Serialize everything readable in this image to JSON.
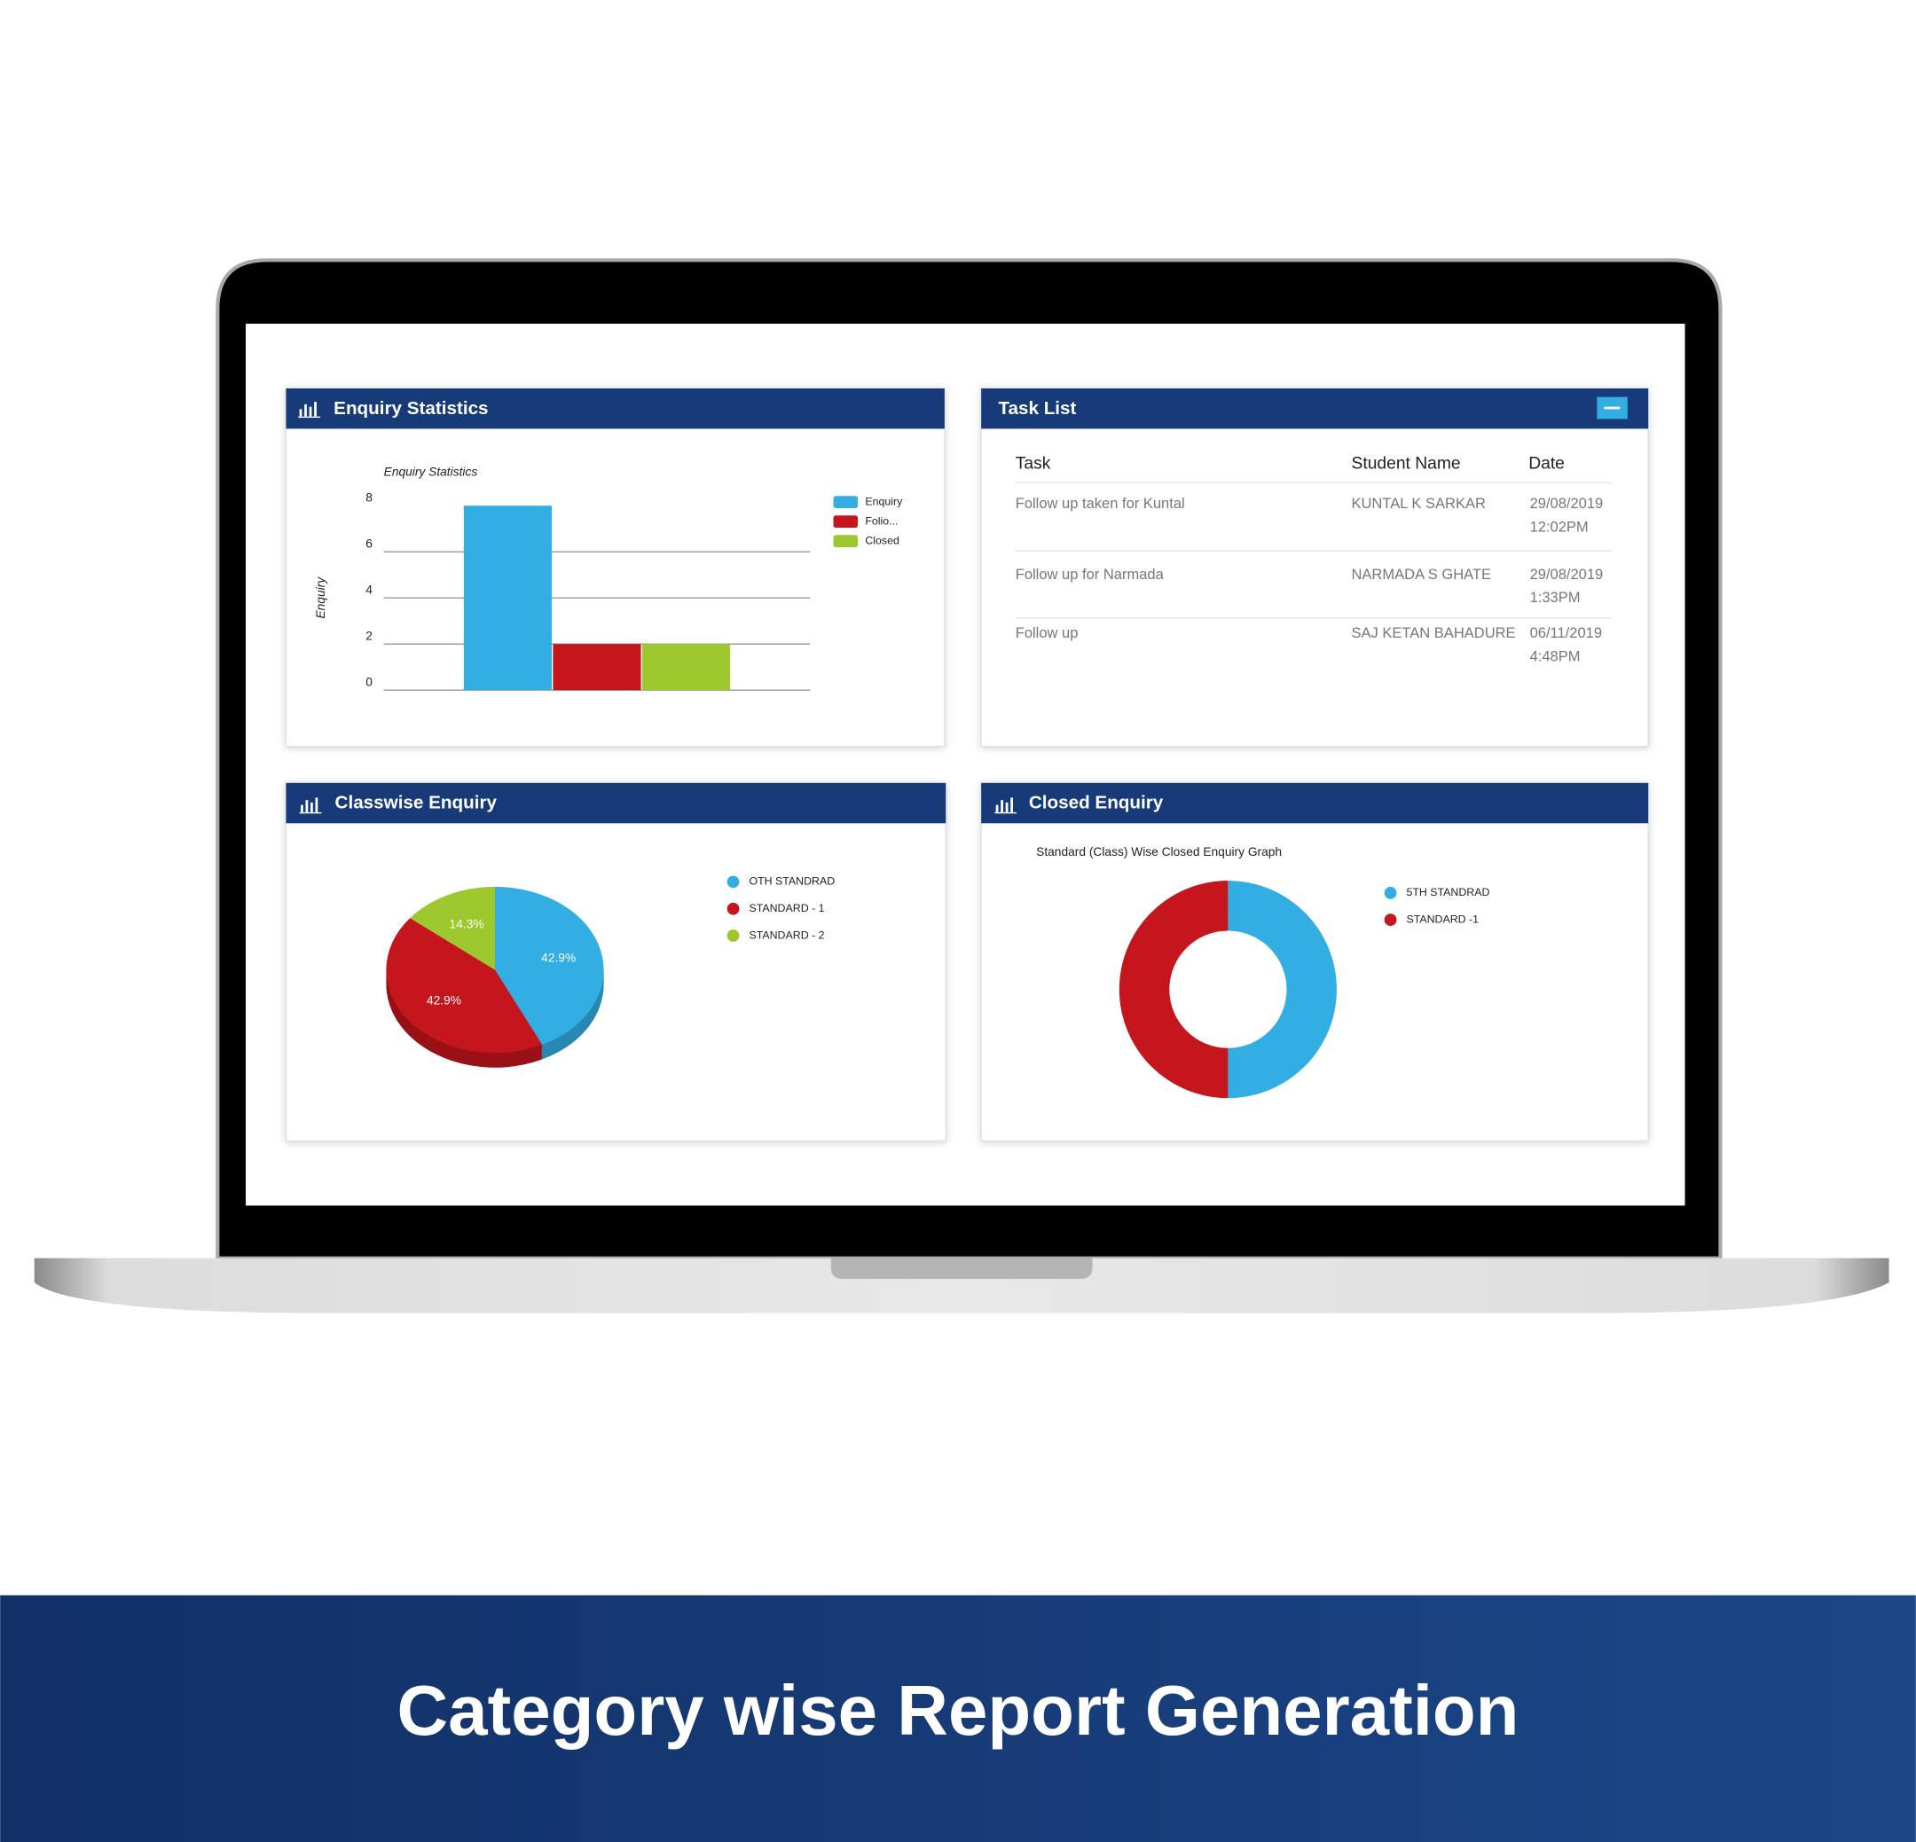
{
  "panels": [
    {
      "title": "Enquiry Statistics"
    },
    {
      "title": "Task List"
    },
    {
      "title": "Classwise Enquiry"
    },
    {
      "title": "Closed Enquiry"
    }
  ],
  "chart_data": [
    {
      "type": "bar",
      "title": "Enquiry Statistics",
      "y_label": "Enquiry",
      "categories": [
        null
      ],
      "series": [
        {
          "name": "Enquiry",
          "color": "#33aee3",
          "values": [
            8
          ]
        },
        {
          "name": "Folio...",
          "color": "#c4161c",
          "values": [
            2
          ]
        },
        {
          "name": "Closed",
          "color": "#9dc92e",
          "values": [
            2
          ]
        }
      ],
      "ylim": [
        0,
        8
      ],
      "yticks": [
        0,
        2,
        4,
        6,
        8
      ],
      "grid": true,
      "legend": "right"
    },
    {
      "type": "pie",
      "style": "3d",
      "labels": [
        "OTH STANDRAD",
        "STANDARD - 1",
        "STANDARD - 2"
      ],
      "values": [
        42.9,
        42.9,
        14.3
      ],
      "value_labels": [
        "42.9%",
        "42.9%",
        "14.3%"
      ],
      "colors": [
        "#33aee3",
        "#c4161c",
        "#9dc92e"
      ],
      "legend": "right"
    },
    {
      "type": "donut",
      "title": "Standard (Class) Wise Closed Enquiry Graph",
      "labels": [
        "5TH STANDRAD",
        "STANDARD -1"
      ],
      "values": [
        50,
        50
      ],
      "colors": [
        "#33aee3",
        "#c4161c"
      ],
      "legend": "right"
    }
  ],
  "task_list": {
    "columns": [
      "Task",
      "Student Name",
      "Date"
    ],
    "rows": [
      [
        "Follow up taken for Kuntal",
        "KUNTAL K SARKAR",
        "29/08/2019",
        "12:02PM"
      ],
      [
        "Follow up for Narmada",
        "NARMADA S GHATE",
        "29/08/2019",
        "1:33PM"
      ],
      [
        "Follow up",
        "SAJ KETAN BAHADURE",
        "06/11/2019",
        "4:48PM"
      ]
    ]
  },
  "banner": {
    "title": "Category wise Report Generation"
  }
}
